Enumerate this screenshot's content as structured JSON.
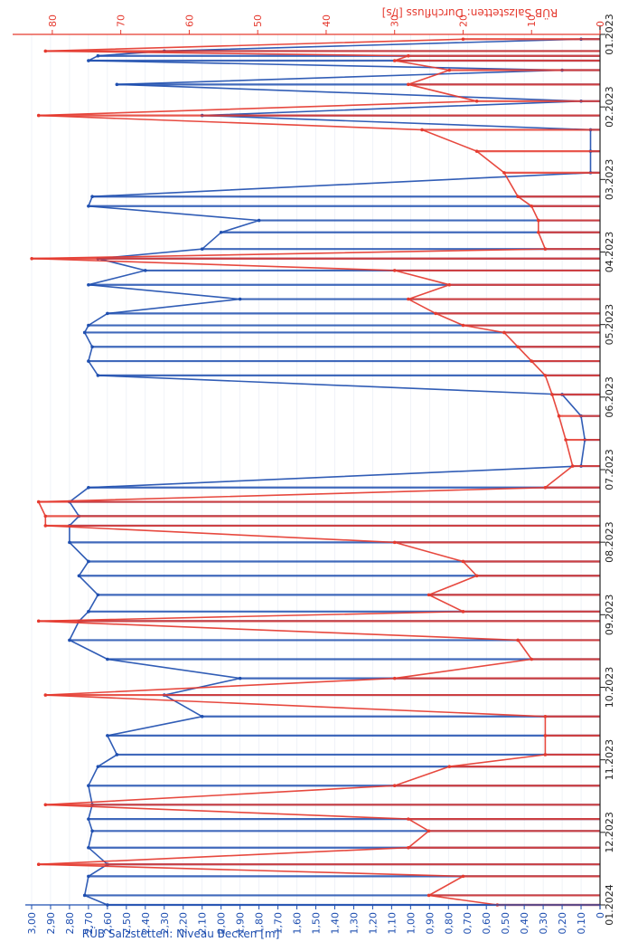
{
  "chart_data": {
    "type": "line",
    "title": "",
    "orientation": "rotated-90",
    "x_axis": {
      "label": "",
      "ticks": [
        "01.2023",
        "02.2023",
        "03.2023",
        "04.2023",
        "05.2023",
        "06.2023",
        "07.2023",
        "08.2023",
        "09.2023",
        "10.2023",
        "11.2023",
        "12.2023",
        "01.2024"
      ],
      "range": [
        "2023-01-01",
        "2024-01-01"
      ]
    },
    "y_left": {
      "label": "RÜB Salzstetten: Niveau Becken [m]",
      "range": [
        0,
        3.0
      ],
      "ticks": [
        "0",
        "0,10",
        "0,20",
        "0,30",
        "0,40",
        "0,50",
        "0,60",
        "0,70",
        "0,80",
        "0,90",
        "1,00",
        "1,10",
        "1,20",
        "1,30",
        "1,40",
        "1,50",
        "1,60",
        "1,70",
        "1,80",
        "1,90",
        "2,00",
        "2,10",
        "2,20",
        "2,30",
        "2,40",
        "2,50",
        "2,60",
        "2,70",
        "2,80",
        "2,90",
        "3,00"
      ],
      "color": "#1f4fb0"
    },
    "y_right": {
      "label": "RÜB Salzstetten: Durchfluss [l/s]",
      "range": [
        0,
        85
      ],
      "ticks": [
        "0",
        "10",
        "20",
        "30",
        "40",
        "50",
        "60",
        "70",
        "80"
      ],
      "color": "#e53a2f"
    },
    "series": [
      {
        "name": "RÜB Salzstetten: Niveau Becken [m]",
        "color": "#1f4fb0",
        "axis": "left",
        "x": [
          "2023-01-03",
          "2023-01-08",
          "2023-01-10",
          "2023-01-12",
          "2023-01-16",
          "2023-01-22",
          "2023-01-29",
          "2023-02-04",
          "2023-02-10",
          "2023-02-19",
          "2023-02-28",
          "2023-03-10",
          "2023-03-14",
          "2023-03-20",
          "2023-03-25",
          "2023-04-01",
          "2023-04-05",
          "2023-04-10",
          "2023-04-16",
          "2023-04-22",
          "2023-04-28",
          "2023-05-03",
          "2023-05-06",
          "2023-05-12",
          "2023-05-18",
          "2023-05-24",
          "2023-06-01",
          "2023-06-10",
          "2023-06-20",
          "2023-07-01",
          "2023-07-10",
          "2023-07-16",
          "2023-07-22",
          "2023-07-26",
          "2023-08-02",
          "2023-08-10",
          "2023-08-16",
          "2023-08-24",
          "2023-08-31",
          "2023-09-04",
          "2023-09-12",
          "2023-09-20",
          "2023-09-28",
          "2023-10-05",
          "2023-10-14",
          "2023-10-22",
          "2023-10-30",
          "2023-11-04",
          "2023-11-12",
          "2023-11-20",
          "2023-11-26",
          "2023-12-01",
          "2023-12-08",
          "2023-12-15",
          "2023-12-20",
          "2023-12-28",
          "2024-01-01"
        ],
        "values": [
          0.1,
          2.3,
          2.65,
          2.7,
          0.2,
          2.55,
          0.1,
          2.1,
          0.05,
          0.05,
          0.05,
          2.68,
          2.7,
          1.8,
          2.0,
          2.1,
          2.65,
          2.4,
          2.7,
          1.9,
          2.6,
          2.7,
          2.72,
          2.68,
          2.7,
          2.65,
          0.2,
          0.1,
          0.08,
          0.1,
          2.7,
          2.8,
          2.75,
          2.8,
          2.8,
          2.7,
          2.75,
          2.65,
          2.7,
          2.75,
          2.8,
          2.6,
          1.9,
          2.3,
          2.1,
          2.6,
          2.55,
          2.65,
          2.7,
          2.68,
          2.7,
          2.68,
          2.7,
          2.6,
          2.7,
          2.72,
          2.6
        ]
      },
      {
        "name": "RÜB Salzstetten: Durchfluss [l/s]",
        "color": "#e53a2f",
        "axis": "right",
        "x": [
          "2023-01-03",
          "2023-01-08",
          "2023-01-10",
          "2023-01-12",
          "2023-01-16",
          "2023-01-22",
          "2023-01-29",
          "2023-02-04",
          "2023-02-10",
          "2023-02-19",
          "2023-02-28",
          "2023-03-10",
          "2023-03-14",
          "2023-03-20",
          "2023-03-25",
          "2023-04-01",
          "2023-04-05",
          "2023-04-10",
          "2023-04-16",
          "2023-04-22",
          "2023-04-28",
          "2023-05-03",
          "2023-05-06",
          "2023-05-12",
          "2023-05-18",
          "2023-05-24",
          "2023-06-01",
          "2023-06-10",
          "2023-06-20",
          "2023-07-01",
          "2023-07-10",
          "2023-07-16",
          "2023-07-22",
          "2023-07-26",
          "2023-08-02",
          "2023-08-10",
          "2023-08-16",
          "2023-08-24",
          "2023-08-31",
          "2023-09-04",
          "2023-09-12",
          "2023-09-20",
          "2023-09-28",
          "2023-10-05",
          "2023-10-14",
          "2023-10-22",
          "2023-10-30",
          "2023-11-04",
          "2023-11-12",
          "2023-11-20",
          "2023-11-26",
          "2023-12-01",
          "2023-12-08",
          "2023-12-15",
          "2023-12-20",
          "2023-12-28",
          "2024-01-01"
        ],
        "values": [
          20,
          81,
          28,
          30,
          22,
          28,
          18,
          82,
          26,
          18,
          14,
          12,
          10,
          9,
          9,
          8,
          83,
          30,
          22,
          28,
          24,
          20,
          14,
          12,
          10,
          8,
          7,
          6,
          5,
          4,
          8,
          82,
          81,
          81,
          30,
          20,
          18,
          25,
          20,
          82,
          12,
          10,
          30,
          81,
          8,
          8,
          8,
          22,
          30,
          81,
          28,
          25,
          28,
          82,
          20,
          25,
          15
        ]
      }
    ]
  }
}
